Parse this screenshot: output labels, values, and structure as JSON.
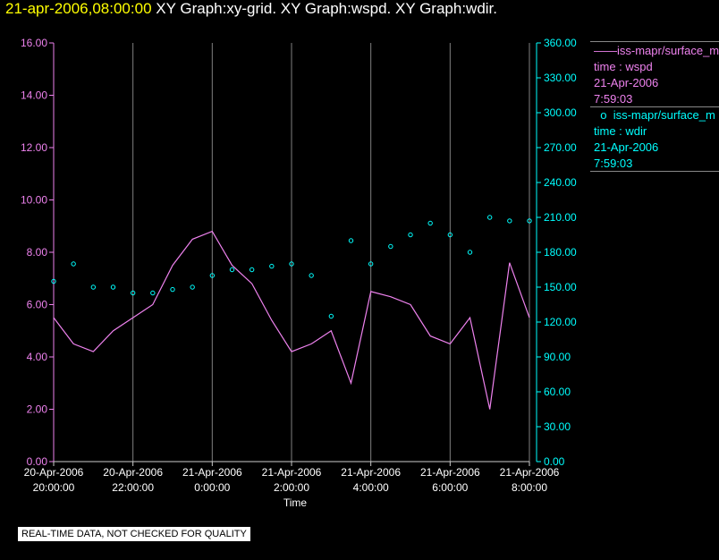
{
  "title": {
    "timestamp": "21-apr-2006,08:00:00",
    "graphs": "XY Graph:xy-grid.  XY Graph:wspd.  XY Graph:wdir."
  },
  "legend": [
    {
      "line1": "iss-mapr/surface_m",
      "line2": "time : wspd",
      "line3": "21-Apr-2006",
      "line4": "7:59:03",
      "color": "#ee82ee",
      "marker": "line"
    },
    {
      "line1": "iss-mapr/surface_m",
      "line2": "time : wdir",
      "line3": "21-Apr-2006",
      "line4": "7:59:03",
      "color": "#00ffff",
      "marker": "circle"
    }
  ],
  "notice": "REAL-TIME DATA, NOT CHECKED FOR QUALITY",
  "chart_data": {
    "type": "line",
    "title": "",
    "xlabel": "Time",
    "x_tick_labels": [
      [
        "20-Apr-2006",
        "20:00:00"
      ],
      [
        "20-Apr-2006",
        "22:00:00"
      ],
      [
        "21-Apr-2006",
        "0:00:00"
      ],
      [
        "21-Apr-2006",
        "2:00:00"
      ],
      [
        "21-Apr-2006",
        "4:00:00"
      ],
      [
        "21-Apr-2006",
        "6:00:00"
      ],
      [
        "21-Apr-2006",
        "8:00:00"
      ]
    ],
    "xlim_hours": [
      0,
      12
    ],
    "left_axis": {
      "color": "#ee82ee",
      "ylim": [
        0,
        16
      ],
      "ticks": [
        "0.00",
        "2.00",
        "4.00",
        "6.00",
        "8.00",
        "10.00",
        "12.00",
        "14.00",
        "16.00"
      ]
    },
    "right_axis": {
      "color": "#00ffff",
      "ylim": [
        0,
        360
      ],
      "ticks": [
        "0.00",
        "30.00",
        "60.00",
        "90.00",
        "120.00",
        "150.00",
        "180.00",
        "210.00",
        "240.00",
        "270.00",
        "300.00",
        "330.00",
        "360.00"
      ]
    },
    "grid": "vertical",
    "series": [
      {
        "label": "time : wspd",
        "axis": "left",
        "style": "line",
        "color": "#ee82ee",
        "x": [
          0,
          0.5,
          1,
          1.5,
          2,
          2.5,
          3,
          3.5,
          4,
          4.5,
          5,
          5.5,
          6,
          6.5,
          7,
          7.5,
          8,
          8.5,
          9,
          9.5,
          10,
          10.5,
          11,
          11.5,
          12
        ],
        "y": [
          5.5,
          4.5,
          4.2,
          5.0,
          5.5,
          6.0,
          7.5,
          8.5,
          8.8,
          7.5,
          6.8,
          5.4,
          4.2,
          4.5,
          5.0,
          3.0,
          6.5,
          6.3,
          6.0,
          4.8,
          4.5,
          5.5,
          2.0,
          7.6,
          5.5
        ]
      },
      {
        "label": "time : wdir",
        "axis": "right",
        "style": "scatter",
        "color": "#00ffff",
        "x": [
          0,
          0.5,
          1,
          1.5,
          2,
          2.5,
          3,
          3.5,
          4,
          4.5,
          5,
          5.5,
          6,
          6.5,
          7,
          7.5,
          8,
          8.5,
          9,
          9.5,
          10,
          10.5,
          11,
          11.5,
          12
        ],
        "y": [
          155,
          170,
          150,
          150,
          145,
          145,
          148,
          150,
          160,
          165,
          165,
          168,
          170,
          160,
          125,
          190,
          170,
          185,
          195,
          205,
          195,
          180,
          210,
          207,
          207
        ]
      }
    ]
  }
}
